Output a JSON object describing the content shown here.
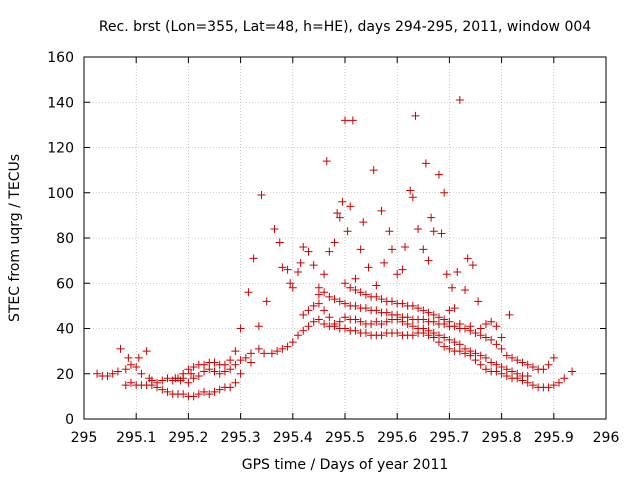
{
  "chart_data": {
    "type": "scatter",
    "title": "Rec. brst (Lon=355, Lat=48, h=HE), days 294-295, 2011, window 004",
    "xlabel": "GPS time / Days of year 2011",
    "ylabel": "STEC from uqrg / TECUs",
    "xlim": [
      295,
      296
    ],
    "ylim": [
      0,
      160
    ],
    "xticks": [
      "295",
      "295.1",
      "295.2",
      "295.3",
      "295.4",
      "295.5",
      "295.6",
      "295.7",
      "295.8",
      "295.9",
      "296"
    ],
    "yticks": [
      "0",
      "20",
      "40",
      "60",
      "80",
      "100",
      "120",
      "140",
      "160"
    ],
    "grid": true,
    "legend": "none",
    "marker": "+",
    "color": "#cc0000",
    "series": [
      {
        "points": [
          [
            295.025,
            20
          ],
          [
            295.035,
            19
          ],
          [
            295.045,
            19
          ],
          [
            295.055,
            20
          ],
          [
            295.065,
            21
          ],
          [
            295.07,
            31
          ],
          [
            295.08,
            22
          ],
          [
            295.085,
            27
          ],
          [
            295.09,
            24
          ],
          [
            295.1,
            23
          ],
          [
            295.105,
            27
          ],
          [
            295.11,
            20
          ],
          [
            295.12,
            30
          ],
          [
            295.125,
            18
          ],
          [
            295.13,
            17
          ],
          [
            295.14,
            16
          ],
          [
            295.15,
            17
          ],
          [
            295.16,
            18
          ],
          [
            295.17,
            17
          ],
          [
            295.18,
            18
          ],
          [
            295.19,
            20
          ],
          [
            295.2,
            22
          ],
          [
            295.21,
            23
          ],
          [
            295.22,
            24
          ],
          [
            295.23,
            24
          ],
          [
            295.24,
            25
          ],
          [
            295.25,
            25
          ],
          [
            295.26,
            24
          ],
          [
            295.27,
            24
          ],
          [
            295.28,
            26
          ],
          [
            295.29,
            30
          ],
          [
            295.08,
            15
          ],
          [
            295.09,
            16
          ],
          [
            295.1,
            15
          ],
          [
            295.11,
            15
          ],
          [
            295.12,
            15
          ],
          [
            295.13,
            15
          ],
          [
            295.14,
            14
          ],
          [
            295.15,
            13
          ],
          [
            295.16,
            12
          ],
          [
            295.17,
            11
          ],
          [
            295.18,
            11
          ],
          [
            295.19,
            11
          ],
          [
            295.2,
            10
          ],
          [
            295.21,
            10
          ],
          [
            295.22,
            11
          ],
          [
            295.23,
            12
          ],
          [
            295.24,
            11
          ],
          [
            295.25,
            12
          ],
          [
            295.26,
            13
          ],
          [
            295.27,
            14
          ],
          [
            295.28,
            14
          ],
          [
            295.29,
            16
          ],
          [
            295.3,
            20
          ],
          [
            295.175,
            18
          ],
          [
            295.185,
            17
          ],
          [
            295.19,
            18
          ],
          [
            295.2,
            16
          ],
          [
            295.205,
            20
          ],
          [
            295.21,
            18
          ],
          [
            295.22,
            19
          ],
          [
            295.23,
            21
          ],
          [
            295.24,
            22
          ],
          [
            295.25,
            21
          ],
          [
            295.26,
            20
          ],
          [
            295.27,
            21
          ],
          [
            295.28,
            22
          ],
          [
            295.29,
            24
          ],
          [
            295.3,
            26
          ],
          [
            295.31,
            27
          ],
          [
            295.32,
            29
          ],
          [
            295.3,
            40
          ],
          [
            295.315,
            56
          ],
          [
            295.325,
            71
          ],
          [
            295.335,
            41
          ],
          [
            295.34,
            99
          ],
          [
            295.35,
            52
          ],
          [
            295.365,
            84
          ],
          [
            295.375,
            78
          ],
          [
            295.38,
            67
          ],
          [
            295.39,
            66
          ],
          [
            295.395,
            60
          ],
          [
            295.4,
            58
          ],
          [
            295.41,
            65
          ],
          [
            295.415,
            69
          ],
          [
            295.42,
            76
          ],
          [
            295.43,
            74
          ],
          [
            295.44,
            68
          ],
          [
            295.45,
            55
          ],
          [
            295.46,
            64
          ],
          [
            295.465,
            114
          ],
          [
            295.47,
            74
          ],
          [
            295.48,
            78
          ],
          [
            295.485,
            91
          ],
          [
            295.49,
            89
          ],
          [
            295.495,
            96
          ],
          [
            295.5,
            132
          ],
          [
            295.505,
            83
          ],
          [
            295.51,
            94
          ],
          [
            295.515,
            132
          ],
          [
            295.52,
            62
          ],
          [
            295.53,
            75
          ],
          [
            295.535,
            87
          ],
          [
            295.545,
            67
          ],
          [
            295.555,
            110
          ],
          [
            295.56,
            59
          ],
          [
            295.57,
            92
          ],
          [
            295.575,
            69
          ],
          [
            295.585,
            83
          ],
          [
            295.59,
            75
          ],
          [
            295.6,
            64
          ],
          [
            295.61,
            66
          ],
          [
            295.615,
            76
          ],
          [
            295.625,
            101
          ],
          [
            295.63,
            98
          ],
          [
            295.635,
            134
          ],
          [
            295.64,
            84
          ],
          [
            295.65,
            75
          ],
          [
            295.655,
            113
          ],
          [
            295.66,
            70
          ],
          [
            295.665,
            89
          ],
          [
            295.67,
            83
          ],
          [
            295.68,
            108
          ],
          [
            295.685,
            82
          ],
          [
            295.69,
            100
          ],
          [
            295.695,
            64
          ],
          [
            295.7,
            48
          ],
          [
            295.705,
            58
          ],
          [
            295.71,
            49
          ],
          [
            295.715,
            65
          ],
          [
            295.72,
            141
          ],
          [
            295.73,
            57
          ],
          [
            295.735,
            71
          ],
          [
            295.745,
            68
          ],
          [
            295.755,
            52
          ],
          [
            295.32,
            25
          ],
          [
            295.335,
            31
          ],
          [
            295.345,
            29
          ],
          [
            295.36,
            29
          ],
          [
            295.37,
            30
          ],
          [
            295.38,
            31
          ],
          [
            295.39,
            32
          ],
          [
            295.4,
            34
          ],
          [
            295.41,
            37
          ],
          [
            295.42,
            39
          ],
          [
            295.43,
            41
          ],
          [
            295.44,
            43
          ],
          [
            295.45,
            44
          ],
          [
            295.46,
            42
          ],
          [
            295.47,
            41
          ],
          [
            295.48,
            41
          ],
          [
            295.49,
            40
          ],
          [
            295.5,
            40
          ],
          [
            295.51,
            39
          ],
          [
            295.52,
            39
          ],
          [
            295.53,
            38
          ],
          [
            295.54,
            38
          ],
          [
            295.55,
            37
          ],
          [
            295.56,
            37
          ],
          [
            295.57,
            37
          ],
          [
            295.58,
            38
          ],
          [
            295.59,
            38
          ],
          [
            295.6,
            38
          ],
          [
            295.61,
            37
          ],
          [
            295.62,
            37
          ],
          [
            295.63,
            37
          ],
          [
            295.64,
            38
          ],
          [
            295.65,
            38
          ],
          [
            295.66,
            37
          ],
          [
            295.67,
            36
          ],
          [
            295.68,
            34
          ],
          [
            295.69,
            32
          ],
          [
            295.7,
            31
          ],
          [
            295.71,
            30
          ],
          [
            295.72,
            30
          ],
          [
            295.73,
            29
          ],
          [
            295.74,
            28
          ],
          [
            295.75,
            26
          ],
          [
            295.76,
            24
          ],
          [
            295.77,
            22
          ],
          [
            295.78,
            21
          ],
          [
            295.79,
            21
          ],
          [
            295.8,
            20
          ],
          [
            295.81,
            19
          ],
          [
            295.82,
            18
          ],
          [
            295.83,
            18
          ],
          [
            295.84,
            17
          ],
          [
            295.85,
            16
          ],
          [
            295.86,
            15
          ],
          [
            295.87,
            14
          ],
          [
            295.88,
            14
          ],
          [
            295.89,
            14
          ],
          [
            295.9,
            15
          ],
          [
            295.91,
            16
          ],
          [
            295.92,
            18
          ],
          [
            295.935,
            21
          ],
          [
            295.42,
            46
          ],
          [
            295.43,
            48
          ],
          [
            295.44,
            50
          ],
          [
            295.45,
            51
          ],
          [
            295.46,
            48
          ],
          [
            295.47,
            45
          ],
          [
            295.48,
            42
          ],
          [
            295.49,
            43
          ],
          [
            295.5,
            45
          ],
          [
            295.51,
            44
          ],
          [
            295.52,
            44
          ],
          [
            295.53,
            43
          ],
          [
            295.54,
            42
          ],
          [
            295.55,
            42
          ],
          [
            295.56,
            43
          ],
          [
            295.57,
            42
          ],
          [
            295.58,
            43
          ],
          [
            295.59,
            44
          ],
          [
            295.6,
            44
          ],
          [
            295.61,
            43
          ],
          [
            295.62,
            42
          ],
          [
            295.63,
            41
          ],
          [
            295.64,
            40
          ],
          [
            295.65,
            40
          ],
          [
            295.66,
            39
          ],
          [
            295.67,
            38
          ],
          [
            295.68,
            37
          ],
          [
            295.69,
            36
          ],
          [
            295.7,
            35
          ],
          [
            295.71,
            34
          ],
          [
            295.72,
            33
          ],
          [
            295.73,
            31
          ],
          [
            295.74,
            30
          ],
          [
            295.75,
            29
          ],
          [
            295.76,
            28
          ],
          [
            295.77,
            27
          ],
          [
            295.78,
            25
          ],
          [
            295.79,
            24
          ],
          [
            295.8,
            23
          ],
          [
            295.81,
            22
          ],
          [
            295.82,
            21
          ],
          [
            295.83,
            20
          ],
          [
            295.84,
            19
          ],
          [
            295.85,
            19
          ],
          [
            295.45,
            58
          ],
          [
            295.46,
            56
          ],
          [
            295.47,
            54
          ],
          [
            295.48,
            53
          ],
          [
            295.49,
            52
          ],
          [
            295.5,
            51
          ],
          [
            295.51,
            50
          ],
          [
            295.52,
            50
          ],
          [
            295.53,
            49
          ],
          [
            295.54,
            49
          ],
          [
            295.55,
            48
          ],
          [
            295.56,
            48
          ],
          [
            295.57,
            47
          ],
          [
            295.58,
            47
          ],
          [
            295.59,
            46
          ],
          [
            295.6,
            46
          ],
          [
            295.61,
            45
          ],
          [
            295.62,
            45
          ],
          [
            295.63,
            44
          ],
          [
            295.64,
            44
          ],
          [
            295.65,
            44
          ],
          [
            295.66,
            43
          ],
          [
            295.67,
            43
          ],
          [
            295.68,
            42
          ],
          [
            295.69,
            42
          ],
          [
            295.7,
            41
          ],
          [
            295.71,
            41
          ],
          [
            295.72,
            40
          ],
          [
            295.73,
            40
          ],
          [
            295.74,
            39
          ],
          [
            295.75,
            38
          ],
          [
            295.76,
            37
          ],
          [
            295.77,
            36
          ],
          [
            295.78,
            35
          ],
          [
            295.79,
            33
          ],
          [
            295.8,
            31
          ],
          [
            295.81,
            28
          ],
          [
            295.82,
            27
          ],
          [
            295.83,
            26
          ],
          [
            295.84,
            25
          ],
          [
            295.85,
            24
          ],
          [
            295.86,
            23
          ],
          [
            295.87,
            22
          ],
          [
            295.88,
            22
          ],
          [
            295.89,
            24
          ],
          [
            295.9,
            27
          ],
          [
            295.5,
            60
          ],
          [
            295.51,
            58
          ],
          [
            295.52,
            57
          ],
          [
            295.53,
            56
          ],
          [
            295.54,
            55
          ],
          [
            295.55,
            54
          ],
          [
            295.56,
            54
          ],
          [
            295.57,
            53
          ],
          [
            295.58,
            52
          ],
          [
            295.59,
            52
          ],
          [
            295.6,
            51
          ],
          [
            295.61,
            51
          ],
          [
            295.62,
            50
          ],
          [
            295.63,
            50
          ],
          [
            295.64,
            49
          ],
          [
            295.65,
            48
          ],
          [
            295.66,
            47
          ],
          [
            295.67,
            46
          ],
          [
            295.68,
            45
          ],
          [
            295.69,
            44
          ],
          [
            295.7,
            43
          ],
          [
            295.72,
            42
          ],
          [
            295.74,
            41
          ],
          [
            295.76,
            40
          ],
          [
            295.77,
            42
          ],
          [
            295.78,
            43
          ],
          [
            295.79,
            41
          ],
          [
            295.8,
            36
          ],
          [
            295.815,
            46
          ]
        ]
      }
    ]
  }
}
